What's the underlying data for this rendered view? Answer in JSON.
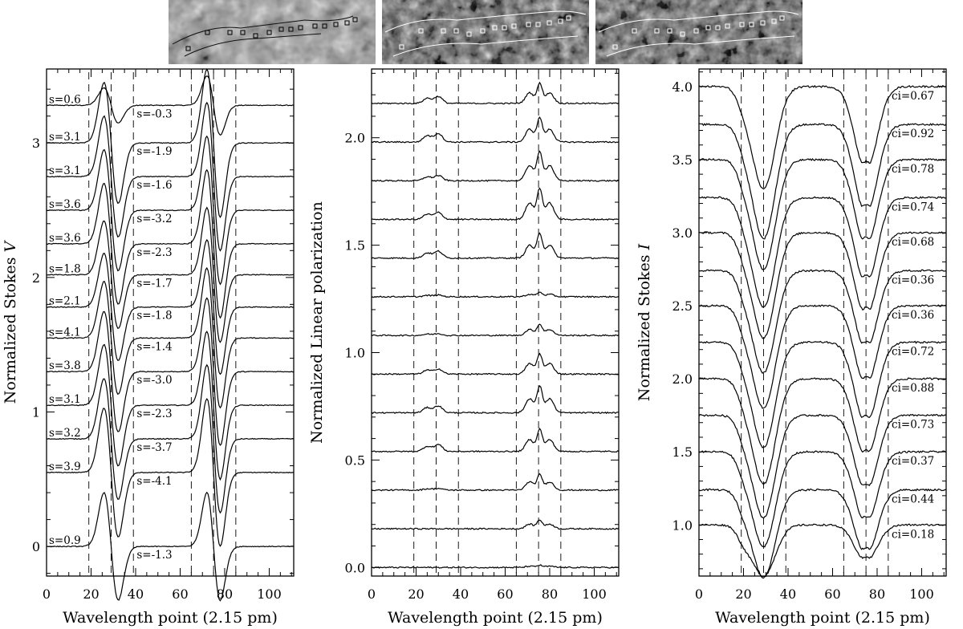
{
  "figure": {
    "xlabel": "Wavelength point (2.15 pm)",
    "xticks": [
      "0",
      "20",
      "40",
      "60",
      "80",
      "100"
    ],
    "dashed_lines_x": [
      19,
      29,
      39,
      65,
      75,
      85
    ]
  },
  "chart_data": [
    {
      "type": "line",
      "panel": "left",
      "ylabel": "Normalized Stokes V",
      "xlim": [
        0,
        111
      ],
      "ylim": [
        -0.22,
        3.55
      ],
      "yticks": [
        "0",
        "1",
        "2",
        "3"
      ],
      "series": [
        {
          "offset": 3.28,
          "amp_blue": 0.13,
          "amp_red": 0.22,
          "left_label": "s=0.6",
          "right_label": "s=-0.3"
        },
        {
          "offset": 3.0,
          "amp_blue": 0.45,
          "amp_red": 0.55,
          "left_label": "s=3.1",
          "right_label": "s=-1.9"
        },
        {
          "offset": 2.75,
          "amp_blue": 0.45,
          "amp_red": 0.55,
          "left_label": "s=3.1",
          "right_label": "s=-1.6"
        },
        {
          "offset": 2.5,
          "amp_blue": 0.45,
          "amp_red": 0.55,
          "left_label": "s=3.6",
          "right_label": "s=-3.2"
        },
        {
          "offset": 2.25,
          "amp_blue": 0.45,
          "amp_red": 0.55,
          "left_label": "s=3.6",
          "right_label": "s=-2.3"
        },
        {
          "offset": 2.02,
          "amp_blue": 0.4,
          "amp_red": 0.5,
          "left_label": "s=1.8",
          "right_label": "s=-1.7"
        },
        {
          "offset": 1.78,
          "amp_blue": 0.4,
          "amp_red": 0.5,
          "left_label": "s=2.1",
          "right_label": "s=-1.8"
        },
        {
          "offset": 1.55,
          "amp_blue": 0.42,
          "amp_red": 0.52,
          "left_label": "s=4.1",
          "right_label": "s=-1.4"
        },
        {
          "offset": 1.3,
          "amp_blue": 0.45,
          "amp_red": 0.55,
          "left_label": "s=3.8",
          "right_label": "s=-3.0"
        },
        {
          "offset": 1.05,
          "amp_blue": 0.45,
          "amp_red": 0.55,
          "left_label": "s=3.1",
          "right_label": "s=-2.3"
        },
        {
          "offset": 0.8,
          "amp_blue": 0.45,
          "amp_red": 0.55,
          "left_label": "s=3.2",
          "right_label": "s=-3.7"
        },
        {
          "offset": 0.55,
          "amp_blue": 0.48,
          "amp_red": 0.55,
          "left_label": "s=3.9",
          "right_label": "s=-4.1"
        },
        {
          "offset": 0.0,
          "amp_blue": 0.4,
          "amp_red": 0.4,
          "left_label": "s=0.9",
          "right_label": "s=-1.3"
        }
      ]
    },
    {
      "type": "line",
      "panel": "middle",
      "ylabel": "Normalized Linear polarization",
      "xlim": [
        0,
        111
      ],
      "ylim": [
        -0.04,
        2.32
      ],
      "yticks": [
        "0.0",
        "0.5",
        "1.0",
        "1.5",
        "2.0"
      ],
      "series": [
        {
          "offset": 2.16,
          "amp_blue": 0.04,
          "amp_red": 0.09
        },
        {
          "offset": 1.98,
          "amp_blue": 0.05,
          "amp_red": 0.11
        },
        {
          "offset": 1.8,
          "amp_blue": 0.03,
          "amp_red": 0.13
        },
        {
          "offset": 1.62,
          "amp_blue": 0.04,
          "amp_red": 0.14
        },
        {
          "offset": 1.44,
          "amp_blue": 0.04,
          "amp_red": 0.11
        },
        {
          "offset": 1.26,
          "amp_blue": 0.01,
          "amp_red": 0.02
        },
        {
          "offset": 1.08,
          "amp_blue": 0.01,
          "amp_red": 0.05
        },
        {
          "offset": 0.9,
          "amp_blue": 0.03,
          "amp_red": 0.09
        },
        {
          "offset": 0.72,
          "amp_blue": 0.04,
          "amp_red": 0.12
        },
        {
          "offset": 0.54,
          "amp_blue": 0.04,
          "amp_red": 0.1
        },
        {
          "offset": 0.36,
          "amp_blue": 0.01,
          "amp_red": 0.07
        },
        {
          "offset": 0.18,
          "amp_blue": 0.0,
          "amp_red": 0.04
        },
        {
          "offset": 0.0,
          "amp_blue": 0.0,
          "amp_red": 0.01
        }
      ]
    },
    {
      "type": "line",
      "panel": "right",
      "ylabel": "Normalized Stokes I",
      "xlim": [
        0,
        111
      ],
      "ylim": [
        0.65,
        4.12
      ],
      "yticks": [
        "1.0",
        "1.5",
        "2.0",
        "2.5",
        "3.0",
        "3.5",
        "4.0"
      ],
      "series": [
        {
          "offset": 4.0,
          "depth1": 0.7,
          "depth2": 0.58,
          "label": "ci=0.67"
        },
        {
          "offset": 3.74,
          "depth1": 0.78,
          "depth2": 0.62,
          "label": "ci=0.92"
        },
        {
          "offset": 3.5,
          "depth1": 0.75,
          "depth2": 0.6,
          "label": "ci=0.78"
        },
        {
          "offset": 3.24,
          "depth1": 0.75,
          "depth2": 0.6,
          "label": "ci=0.74"
        },
        {
          "offset": 3.0,
          "depth1": 0.72,
          "depth2": 0.58,
          "label": "ci=0.68"
        },
        {
          "offset": 2.74,
          "depth1": 0.7,
          "depth2": 0.55,
          "label": "ci=0.36"
        },
        {
          "offset": 2.5,
          "depth1": 0.7,
          "depth2": 0.55,
          "label": "ci=0.36"
        },
        {
          "offset": 2.25,
          "depth1": 0.72,
          "depth2": 0.57,
          "label": "ci=0.72"
        },
        {
          "offset": 2.0,
          "depth1": 0.72,
          "depth2": 0.55,
          "label": "ci=0.88"
        },
        {
          "offset": 1.75,
          "depth1": 0.7,
          "depth2": 0.53,
          "label": "ci=0.73"
        },
        {
          "offset": 1.5,
          "depth1": 0.65,
          "depth2": 0.5,
          "label": "ci=0.37"
        },
        {
          "offset": 1.24,
          "depth1": 0.6,
          "depth2": 0.45,
          "label": "ci=0.44"
        },
        {
          "offset": 1.0,
          "depth1": 0.35,
          "depth2": 0.25,
          "label": "ci=0.18"
        }
      ]
    }
  ]
}
